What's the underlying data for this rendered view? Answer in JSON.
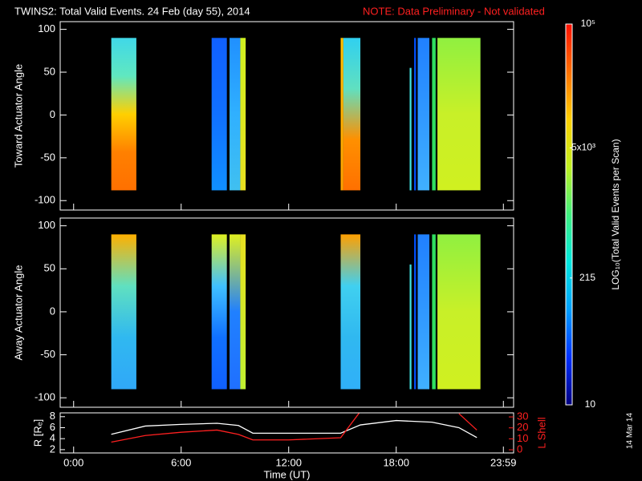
{
  "title": "TWINS2: Total Valid Events. 24 Feb (day  55), 2014",
  "note": "NOTE: Data Preliminary - Not validated",
  "date_stamp": "14 Mar 14",
  "chart_data": [
    {
      "type": "heatmap",
      "ylabel": "Toward Actuator Angle",
      "xlim": [
        -0.75,
        24.55
      ],
      "ylim": [
        -111,
        109
      ],
      "yticks": [
        -100,
        -50,
        0,
        50,
        100
      ],
      "blocks": [
        {
          "start": 2.1,
          "end": 3.5,
          "top": 90,
          "bottom": -88,
          "colors": [
            "#40d8e8",
            "#60e8c0",
            "#ffd000",
            "#ff8000",
            "#ff7000"
          ]
        },
        {
          "start": 7.7,
          "end": 8.55,
          "top": 90,
          "bottom": -88,
          "colors": [
            "#1060ff",
            "#1070ff",
            "#1090ff"
          ]
        },
        {
          "start": 8.7,
          "end": 9.3,
          "top": 90,
          "bottom": -88,
          "colors": [
            "#2090ff",
            "#30b0ff",
            "#40c0f0"
          ]
        },
        {
          "start": 9.3,
          "end": 9.6,
          "top": 90,
          "bottom": -88,
          "colors": [
            "#d0f020",
            "#e8e020"
          ]
        },
        {
          "start": 14.9,
          "end": 15.05,
          "top": 90,
          "bottom": -88,
          "colors": [
            "#ffc000",
            "#ffa000"
          ]
        },
        {
          "start": 15.05,
          "end": 16.0,
          "top": 90,
          "bottom": -88,
          "colors": [
            "#30d0f0",
            "#60e0c0",
            "#ff9000",
            "#ff7000"
          ]
        },
        {
          "start": 18.75,
          "end": 18.85,
          "top": 55,
          "bottom": -88,
          "colors": [
            "#40e0e0"
          ]
        },
        {
          "start": 19.0,
          "end": 19.1,
          "top": 90,
          "bottom": -88,
          "colors": [
            "#0050ff"
          ]
        },
        {
          "start": 19.2,
          "end": 19.85,
          "top": 90,
          "bottom": -88,
          "colors": [
            "#2080ff",
            "#40b0ff"
          ]
        },
        {
          "start": 20.0,
          "end": 20.2,
          "top": 90,
          "bottom": -88,
          "colors": [
            "#30e060"
          ]
        },
        {
          "start": 20.3,
          "end": 22.7,
          "top": 90,
          "bottom": -88,
          "colors": [
            "#90f040",
            "#c8f028",
            "#d0f020"
          ]
        }
      ]
    },
    {
      "type": "heatmap",
      "ylabel": "Away Actuator Angle",
      "xlim": [
        -0.75,
        24.55
      ],
      "ylim": [
        -111,
        109
      ],
      "yticks": [
        -100,
        -50,
        0,
        50,
        100
      ],
      "blocks": [
        {
          "start": 2.1,
          "end": 3.5,
          "top": 90,
          "bottom": -90,
          "colors": [
            "#ffb000",
            "#60e0c0",
            "#30b8f0",
            "#30a8f8"
          ]
        },
        {
          "start": 7.7,
          "end": 8.55,
          "top": 90,
          "bottom": -90,
          "colors": [
            "#e0f020",
            "#40c0ff",
            "#1070ff",
            "#1060ff"
          ]
        },
        {
          "start": 8.7,
          "end": 9.3,
          "top": 90,
          "bottom": -90,
          "colors": [
            "#e0f020",
            "#2080ff",
            "#2070ff"
          ]
        },
        {
          "start": 9.3,
          "end": 9.6,
          "top": 90,
          "bottom": -90,
          "colors": [
            "#e8e020",
            "#c0f030"
          ]
        },
        {
          "start": 14.9,
          "end": 16.0,
          "top": 90,
          "bottom": -90,
          "colors": [
            "#ffa000",
            "#40d0f0",
            "#30b8f0",
            "#30b0f8"
          ]
        },
        {
          "start": 18.75,
          "end": 18.85,
          "top": 55,
          "bottom": -90,
          "colors": [
            "#40e0e0"
          ]
        },
        {
          "start": 19.0,
          "end": 19.1,
          "top": 90,
          "bottom": -90,
          "colors": [
            "#0050ff"
          ]
        },
        {
          "start": 19.2,
          "end": 19.85,
          "top": 90,
          "bottom": -90,
          "colors": [
            "#2080ff",
            "#40b0ff"
          ]
        },
        {
          "start": 20.0,
          "end": 20.2,
          "top": 90,
          "bottom": -90,
          "colors": [
            "#30e060"
          ]
        },
        {
          "start": 20.3,
          "end": 22.7,
          "top": 90,
          "bottom": -90,
          "colors": [
            "#90f040",
            "#c8f028",
            "#d0f020"
          ]
        }
      ]
    },
    {
      "type": "line",
      "xlabel": "Time (UT)",
      "ylabel": "R [Rₑ]",
      "y2label": "L Shell",
      "xlim": [
        -0.75,
        24.55
      ],
      "xticks": [
        {
          "value": 0,
          "label": "0:00"
        },
        {
          "value": 6,
          "label": "6:00"
        },
        {
          "value": 12,
          "label": "12:00"
        },
        {
          "value": 18,
          "label": "18:00"
        },
        {
          "value": 23.98,
          "label": "23:59"
        }
      ],
      "ylim": [
        1.4,
        8.7
      ],
      "yticks": [
        2,
        4,
        6,
        8
      ],
      "y2lim": [
        -2.9,
        33.7
      ],
      "y2ticks": [
        0,
        10,
        20,
        30
      ],
      "x": [
        2.1,
        4,
        6,
        8,
        9.2,
        10,
        12,
        14.9,
        16,
        18,
        20,
        21.5,
        22.5
      ],
      "series": [
        {
          "color": "#ffffff",
          "values": [
            4.8,
            6.3,
            6.6,
            6.8,
            6.4,
            5,
            5,
            5,
            6.5,
            7.3,
            7,
            6,
            4.2
          ]
        },
        {
          "color": "#ff2020",
          "axis": "y2",
          "values": [
            7,
            13,
            16,
            18,
            14,
            9,
            9,
            11,
            35,
            null,
            null,
            33,
            18
          ]
        }
      ]
    },
    {
      "type": "colorbar",
      "label": "LOG₁₀(Total Valid Events per Scan)",
      "log": true,
      "lim": [
        10,
        100000
      ],
      "ticks": [
        10,
        215,
        {
          "value": 5000,
          "label": "5x10³"
        },
        {
          "value": 100000,
          "label": "10⁵"
        }
      ],
      "colors": [
        "#000080",
        "#0030ff",
        "#00a0ff",
        "#00e8e0",
        "#40f080",
        "#c0f020",
        "#ffd000",
        "#ff7000",
        "#ff1000"
      ]
    }
  ]
}
